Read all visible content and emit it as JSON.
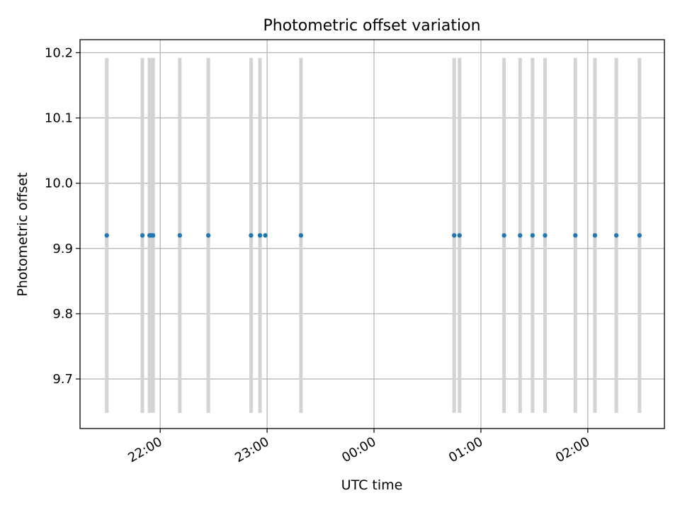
{
  "chart_data": {
    "type": "scatter",
    "title": "Photometric offset variation",
    "xlabel": "UTC time",
    "ylabel": "Photometric offset",
    "x_is_time": true,
    "time_zone": "UTC",
    "xlim": [
      "21:15",
      "02:43"
    ],
    "ylim": [
      9.624,
      10.22
    ],
    "yticks": [
      "9.7",
      "9.8",
      "9.9",
      "10.0",
      "10.1",
      "10.2"
    ],
    "xticks": [
      "22:00",
      "23:00",
      "00:00",
      "01:00",
      "02:00"
    ],
    "grid": true,
    "series": [
      {
        "x": [
          "21:30",
          "21:50",
          "21:54",
          "21:55",
          "21:56",
          "22:11",
          "22:27",
          "22:51",
          "22:56",
          "22:59",
          "23:19",
          "00:45",
          "00:48",
          "01:13",
          "01:22",
          "01:29",
          "01:36",
          "01:53",
          "02:04",
          "02:16",
          "02:29"
        ],
        "y": [
          9.92,
          9.92,
          9.92,
          9.92,
          9.92,
          9.92,
          9.92,
          9.92,
          9.92,
          9.92,
          9.92,
          9.92,
          9.92,
          9.92,
          9.92,
          9.92,
          9.92,
          9.92,
          9.92,
          9.92,
          9.92
        ],
        "color": "#1f77b4"
      }
    ],
    "exposure_bars": {
      "x": [
        "21:30",
        "21:50",
        "21:54",
        "21:56",
        "22:11",
        "22:27",
        "22:51",
        "22:56",
        "23:19",
        "00:45",
        "00:48",
        "01:13",
        "01:22",
        "01:29",
        "01:36",
        "01:53",
        "02:04",
        "02:16",
        "02:29"
      ],
      "range": [
        9.648,
        10.192
      ],
      "color": "#d3d3d3"
    }
  }
}
